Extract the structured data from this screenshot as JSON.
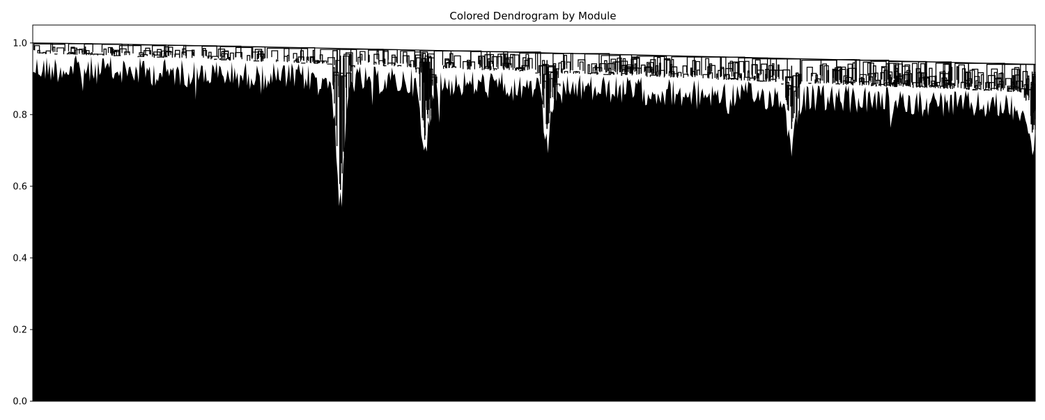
{
  "chart_data": {
    "type": "dendrogram",
    "title": "Colored Dendrogram by Module",
    "xlabel": "",
    "ylabel": "",
    "ylim": [
      0,
      1.05
    ],
    "yticks": [
      0.0,
      0.2,
      0.4,
      0.6,
      0.8,
      1.0
    ],
    "ytick_labels": [
      "0.0",
      "0.2",
      "0.4",
      "0.6",
      "0.8",
      "1.0"
    ],
    "x_ticks_visible": false,
    "grid": false,
    "legend": "none",
    "line_color": "#000000",
    "top_merge_height_left": 1.0,
    "top_merge_height_right": 0.94,
    "notable_low_merges": [
      {
        "x_fraction": 0.307,
        "height": 0.59
      },
      {
        "x_fraction": 0.391,
        "height": 0.73
      },
      {
        "x_fraction": 0.513,
        "height": 0.76
      },
      {
        "x_fraction": 0.757,
        "height": 0.76
      },
      {
        "x_fraction": 0.997,
        "height": 0.75
      }
    ]
  }
}
